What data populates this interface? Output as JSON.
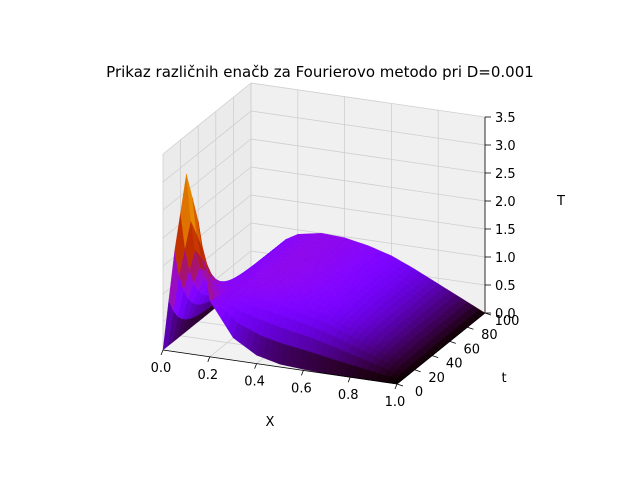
{
  "chart_data": {
    "type": "surface",
    "title": "Prikaz različnih enačb za Fourierovo metodo pri D=0.001",
    "xlabel": "X",
    "ylabel": "t",
    "zlabel": "T",
    "xlim": [
      0.0,
      1.0
    ],
    "ylim": [
      0,
      100
    ],
    "zlim": [
      0.0,
      3.5
    ],
    "x_ticks": [
      "0.0",
      "0.2",
      "0.4",
      "0.6",
      "0.8",
      "1.0"
    ],
    "y_ticks": [
      "0",
      "20",
      "40",
      "60",
      "80",
      "100"
    ],
    "z_ticks": [
      "0.0",
      "0.5",
      "1.0",
      "1.5",
      "2.0",
      "2.5",
      "3.0",
      "3.5"
    ],
    "colormap": "gnuplot",
    "grid": true,
    "surface_samples": {
      "x": [
        0.0,
        0.05,
        0.1,
        0.15,
        0.2,
        0.3,
        0.4,
        0.5,
        0.6,
        0.7,
        0.8,
        0.9,
        1.0
      ],
      "t0_T": [
        0.0,
        1.8,
        3.2,
        2.4,
        1.0,
        0.4,
        0.15,
        0.05,
        0.02,
        0.0,
        0.0,
        0.0,
        0.0
      ],
      "t100_T": [
        0.0,
        0.35,
        0.6,
        0.8,
        0.92,
        1.0,
        0.98,
        0.9,
        0.78,
        0.6,
        0.4,
        0.2,
        0.0
      ]
    }
  }
}
